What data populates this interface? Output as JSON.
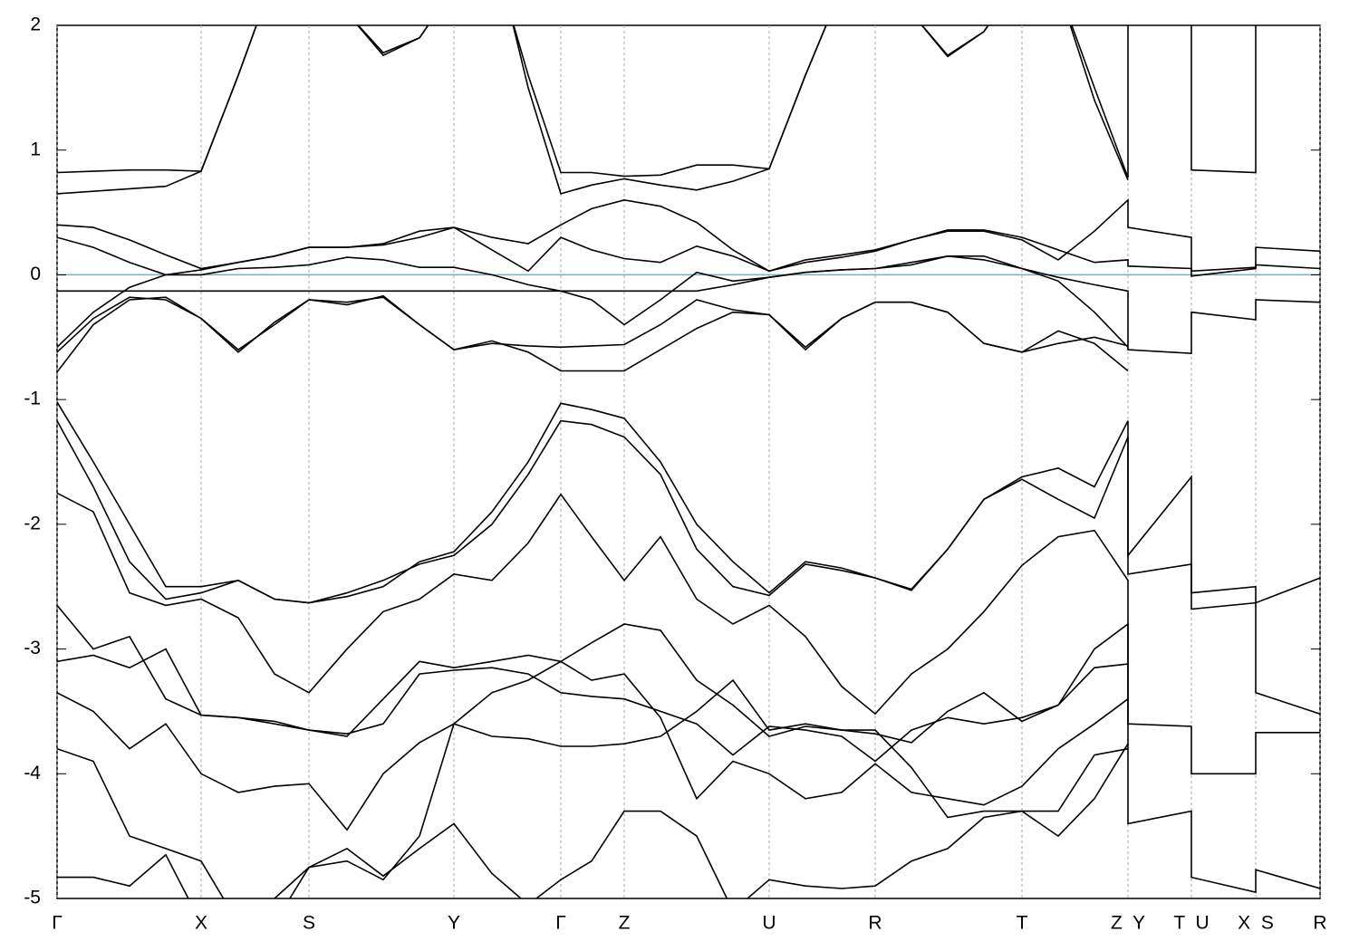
{
  "chart_data": {
    "type": "line",
    "x": [
      0,
      40,
      80,
      120,
      159,
      200,
      240,
      278,
      320,
      360,
      400,
      438,
      480,
      520,
      556,
      590,
      626,
      666,
      706,
      746,
      786,
      826,
      866,
      903,
      943,
      983,
      1023,
      1065,
      1105,
      1145,
      1182,
      1182,
      1252,
      1252,
      1323,
      1323,
      1394
    ],
    "xlim": [
      0,
      1394
    ],
    "xticks": [
      {
        "value": 0,
        "label": "Γ"
      },
      {
        "value": 159,
        "label": "X"
      },
      {
        "value": 278,
        "label": "S"
      },
      {
        "value": 438,
        "label": "Y"
      },
      {
        "value": 556,
        "label": "Γ"
      },
      {
        "value": 626,
        "label": "Z"
      },
      {
        "value": 786,
        "label": "U"
      },
      {
        "value": 903,
        "label": "R"
      },
      {
        "value": 1065,
        "label": "T"
      },
      {
        "value": 1182,
        "label": "Z  Y"
      },
      {
        "value": 1252,
        "label": "T  U"
      },
      {
        "value": 1323,
        "label": "X  S"
      },
      {
        "value": 1394,
        "label": "R"
      }
    ],
    "ylim": [
      -5,
      2
    ],
    "yticks": [
      -5,
      -4,
      -3,
      -2,
      -1,
      0,
      1,
      2
    ],
    "line_color": "#000000",
    "grid_color": "#aaaaaa",
    "hline": 0,
    "hline_color": "#6ab4c8",
    "series": [
      {
        "values": [
          0.82,
          0.83,
          0.84,
          0.84,
          0.83,
          1.6,
          2.4,
          2.6,
          2.1,
          1.78,
          1.9,
          2.3,
          2.6,
          1.6,
          0.82,
          0.82,
          0.79,
          0.8,
          0.88,
          0.88,
          0.85,
          1.6,
          2.3,
          2.5,
          2.1,
          1.76,
          1.95,
          2.4,
          2.3,
          1.5,
          0.78,
          2.5,
          2.5,
          0.84,
          0.82,
          2.5,
          2.5
        ]
      },
      {
        "values": [
          0.65,
          0.67,
          0.69,
          0.71,
          0.83,
          1.6,
          2.4,
          2.6,
          2.1,
          1.76,
          1.9,
          2.3,
          2.7,
          1.5,
          0.65,
          0.72,
          0.77,
          0.72,
          0.68,
          0.75,
          0.85,
          1.6,
          2.3,
          2.5,
          2.1,
          1.75,
          1.95,
          2.4,
          2.3,
          1.4,
          0.76,
          null,
          null,
          null,
          null,
          null,
          null
        ]
      },
      {
        "values": [
          0.4,
          0.38,
          0.28,
          0.16,
          0.05,
          0.1,
          0.15,
          0.22,
          0.22,
          0.24,
          0.3,
          0.38,
          0.3,
          0.25,
          0.4,
          0.53,
          0.6,
          0.55,
          0.42,
          0.2,
          0.03,
          0.12,
          0.16,
          0.2,
          0.28,
          0.35,
          0.35,
          0.28,
          0.12,
          0.35,
          0.6,
          0.38,
          0.3,
          0.03,
          0.06,
          0.22,
          0.19
        ]
      },
      {
        "values": [
          0.3,
          0.22,
          0.1,
          0,
          0.04,
          0.1,
          0.15,
          0.22,
          0.22,
          0.25,
          0.35,
          0.38,
          0.2,
          0.03,
          0.3,
          0.2,
          0.13,
          0.1,
          0.23,
          0.15,
          0.03,
          0.1,
          0.14,
          0.19,
          0.28,
          0.36,
          0.36,
          0.3,
          0.2,
          0.1,
          0.12,
          0.07,
          0.05,
          -0.01,
          0.05,
          0.08,
          0.05
        ]
      },
      {
        "values": [
          -0.13,
          -0.13,
          -0.13,
          -0.13,
          -0.13,
          -0.13,
          -0.13,
          -0.13,
          -0.13,
          -0.13,
          -0.13,
          -0.13,
          -0.13,
          -0.13,
          -0.13,
          -0.13,
          -0.13,
          -0.13,
          -0.13,
          -0.08,
          -0.02,
          0.02,
          0.04,
          0.05,
          0.08,
          0.15,
          0.12,
          0.05,
          -0.02,
          -0.08,
          -0.13,
          -0.6,
          -0.63,
          -0.3,
          -0.36,
          -0.2,
          -0.22
        ]
      },
      {
        "values": [
          -0.58,
          -0.3,
          -0.1,
          0,
          0,
          0.05,
          0.06,
          0.08,
          0.14,
          0.12,
          0.06,
          0.06,
          0,
          -0.08,
          -0.13,
          -0.2,
          -0.4,
          -0.2,
          0.02,
          -0.05,
          -0.02,
          0.02,
          0.04,
          0.05,
          0.1,
          0.15,
          0.15,
          0.05,
          -0.05,
          -0.3,
          -0.58,
          null,
          null,
          null,
          null,
          null,
          null
        ]
      },
      {
        "values": [
          -0.62,
          -0.35,
          -0.18,
          -0.2,
          -0.35,
          -0.6,
          -0.4,
          -0.2,
          -0.24,
          -0.17,
          -0.4,
          -0.6,
          -0.55,
          -0.57,
          -0.58,
          -0.57,
          -0.56,
          -0.4,
          -0.2,
          -0.28,
          -0.32,
          -0.6,
          -0.35,
          -0.22,
          -0.22,
          -0.3,
          -0.55,
          -0.62,
          -0.55,
          -0.5,
          -0.57,
          null,
          null,
          null,
          null,
          null,
          null
        ]
      },
      {
        "values": [
          -0.78,
          -0.4,
          -0.2,
          -0.18,
          -0.35,
          -0.62,
          -0.38,
          -0.2,
          -0.22,
          -0.18,
          -0.4,
          -0.6,
          -0.53,
          -0.62,
          -0.77,
          -0.77,
          -0.77,
          -0.6,
          -0.43,
          -0.3,
          -0.32,
          -0.58,
          -0.35,
          -0.22,
          -0.22,
          -0.3,
          -0.55,
          -0.62,
          -0.45,
          -0.55,
          -0.77,
          null,
          null,
          null,
          null,
          null,
          null
        ]
      },
      {
        "values": [
          -1.02,
          -1.5,
          -2,
          -2.5,
          -2.5,
          -2.45,
          -2.6,
          -2.63,
          -2.58,
          -2.5,
          -2.3,
          -2.22,
          -1.9,
          -1.5,
          -1.03,
          -1.08,
          -1.15,
          -1.5,
          -2,
          -2.3,
          -2.55,
          -2.3,
          -2.35,
          -2.43,
          -2.52,
          -2.2,
          -1.8,
          -1.62,
          -1.55,
          -1.7,
          -1.17,
          -2.25,
          -1.62,
          -2.55,
          -2.5,
          -2.63,
          -2.43
        ]
      },
      {
        "values": [
          -1.17,
          -1.7,
          -2.3,
          -2.6,
          -2.55,
          -2.45,
          -2.6,
          -2.63,
          -2.55,
          -2.45,
          -2.32,
          -2.25,
          -2,
          -1.6,
          -1.17,
          -1.2,
          -1.3,
          -1.6,
          -2.2,
          -2.5,
          -2.57,
          -2.32,
          -2.37,
          -2.43,
          -2.53,
          -2.2,
          -1.8,
          -1.64,
          -1.8,
          -1.95,
          -1.3,
          -2.4,
          -2.32,
          -2.68,
          -2.63,
          -3.35,
          -3.52
        ]
      },
      {
        "values": [
          -1.75,
          -1.9,
          -2.55,
          -2.65,
          -2.6,
          -2.75,
          -3.2,
          -3.35,
          -3,
          -2.7,
          -2.6,
          -2.4,
          -2.45,
          -2.15,
          -1.76,
          -2.1,
          -2.45,
          -2.1,
          -2.6,
          -2.8,
          -2.65,
          -2.9,
          -3.3,
          -3.52,
          -3.2,
          -3,
          -2.7,
          -2.33,
          -2.1,
          -2.05,
          -2.45,
          -3.6,
          -3.62,
          -4,
          -4,
          -3.67,
          -3.67
        ]
      },
      {
        "values": [
          -2.65,
          -3,
          -2.9,
          -3.4,
          -3.53,
          -3.55,
          -3.6,
          -3.65,
          -3.7,
          -3.4,
          -3.1,
          -3.15,
          -3.1,
          -3.05,
          -3.1,
          -2.95,
          -2.8,
          -2.85,
          -3.25,
          -3.45,
          -3.7,
          -3.62,
          -3.65,
          -3.68,
          -3.75,
          -3.5,
          -3.35,
          -3.58,
          -3.45,
          -3,
          -2.8,
          -4.4,
          -4.3,
          -4.83,
          -4.95,
          -4.77,
          -4.92
        ]
      },
      {
        "values": [
          -3.1,
          -3.05,
          -3.15,
          -3,
          -3.53,
          -3.55,
          -3.58,
          -3.65,
          -3.68,
          -3.6,
          -3.2,
          -3.17,
          -3.15,
          -3.2,
          -3.35,
          -3.38,
          -3.4,
          -3.5,
          -3.6,
          -3.85,
          -3.62,
          -3.65,
          -3.7,
          -3.9,
          -3.65,
          -3.55,
          -3.6,
          -3.55,
          -3.45,
          -3.15,
          -3.12,
          null,
          null,
          null,
          null,
          null,
          null
        ]
      },
      {
        "values": [
          -3.35,
          -3.5,
          -3.8,
          -3.6,
          -4,
          -4.15,
          -4.1,
          -4.08,
          -4.45,
          -4,
          -3.75,
          -3.6,
          -3.35,
          -3.25,
          -3.1,
          -3.25,
          -3.2,
          -3.55,
          -4.2,
          -3.9,
          -4,
          -4.2,
          -4.15,
          -3.92,
          -4.15,
          -4.2,
          -4.25,
          -4.1,
          -3.8,
          -3.6,
          -3.4,
          null,
          null,
          null,
          null,
          null,
          null
        ]
      },
      {
        "values": [
          -3.8,
          -3.9,
          -4.5,
          -4.6,
          -4.7,
          -5.2,
          -5.2,
          -4.75,
          -4.6,
          -4.82,
          -4.6,
          -4.4,
          -4.8,
          -5.05,
          -4.85,
          -4.7,
          -4.3,
          -4.3,
          -4.5,
          -5.1,
          -4.85,
          -4.9,
          -4.92,
          -4.9,
          -4.7,
          -4.6,
          -4.35,
          -4.3,
          -4.5,
          -4.2,
          -3.76,
          null,
          null,
          null,
          null,
          null,
          null
        ]
      },
      {
        "values": [
          -4.83,
          -4.83,
          -4.9,
          -4.65,
          -5.2,
          -5.3,
          -5,
          -4.75,
          -4.7,
          -4.85,
          -4.5,
          -3.6,
          -3.7,
          -3.72,
          -3.78,
          -3.78,
          -3.76,
          -3.7,
          -3.5,
          -3.25,
          -3.65,
          -3.6,
          -3.65,
          -3.65,
          -3.95,
          -4.35,
          -4.3,
          -4.3,
          -4.3,
          -3.85,
          -3.8,
          null,
          null,
          null,
          null,
          null,
          null
        ]
      }
    ]
  }
}
